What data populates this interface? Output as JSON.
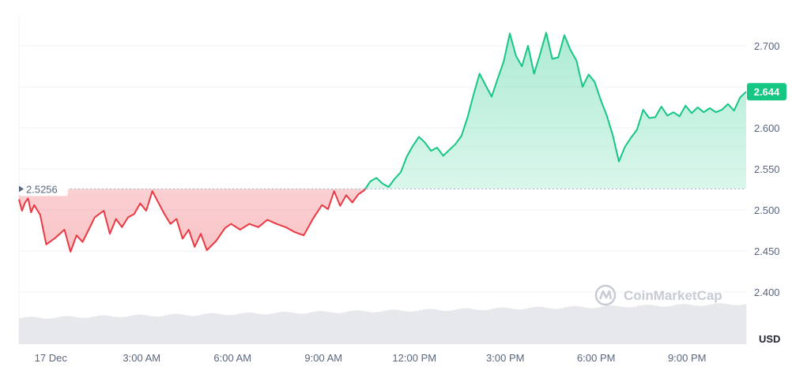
{
  "currency": "USD",
  "watermark": "CoinMarketCap",
  "colors": {
    "up": "#16c784",
    "down": "#ea3943",
    "grid": "#eff2f5",
    "axis_text": "#58667e",
    "volume": "#e6e8ec"
  },
  "chart_data": {
    "type": "area",
    "x_labels": [
      "17 Dec",
      "3:00 AM",
      "6:00 AM",
      "9:00 AM",
      "12:00 PM",
      "3:00 PM",
      "6:00 PM",
      "9:00 PM"
    ],
    "y_ticks": [
      "2.400",
      "2.450",
      "2.500",
      "2.550",
      "2.600",
      "2.650",
      "2.700"
    ],
    "ylim": [
      2.4,
      2.7
    ],
    "reference_price": 2.5256,
    "reference_label": "2.5256",
    "current_price_label": "2.644",
    "ylabel": "USD",
    "grid": true,
    "series": [
      {
        "x_hours": [
          0.0,
          0.1,
          0.2,
          0.3,
          0.4,
          0.5,
          0.7,
          0.9,
          1.2,
          1.5,
          1.7,
          1.9,
          2.1,
          2.3,
          2.5,
          2.8,
          3.0,
          3.2,
          3.4,
          3.6,
          3.8,
          4.0,
          4.2,
          4.4,
          4.6,
          4.8,
          5.0,
          5.2,
          5.4,
          5.6,
          5.8,
          6.0,
          6.2,
          6.5,
          6.8,
          7.0,
          7.3,
          7.6,
          7.9,
          8.2,
          8.5,
          8.8,
          9.1,
          9.4,
          9.7,
          10.0,
          10.2,
          10.4,
          10.6,
          10.8,
          11.0,
          11.2,
          11.4,
          11.6,
          11.8,
          12.0,
          12.2,
          12.4,
          12.6,
          12.8,
          13.0,
          13.2,
          13.4,
          13.6,
          13.8,
          14.0,
          14.2,
          14.4,
          14.6,
          14.8,
          15.0,
          15.2,
          15.4,
          15.6,
          15.8,
          16.0,
          16.2,
          16.4,
          16.6,
          16.8,
          17.0,
          17.2,
          17.4,
          17.6,
          17.8,
          18.0,
          18.2,
          18.4,
          18.6,
          18.8,
          19.0,
          19.2,
          19.4,
          19.6,
          19.8,
          20.0,
          20.2,
          20.4,
          20.6,
          20.8,
          21.0,
          21.2,
          21.4,
          21.6,
          21.8,
          22.0,
          22.2,
          22.4,
          22.6,
          22.8,
          23.0,
          23.2,
          23.4,
          23.6,
          23.8,
          24.0
        ],
        "values": [
          2.513,
          2.499,
          2.509,
          2.514,
          2.497,
          2.506,
          2.494,
          2.458,
          2.466,
          2.476,
          2.449,
          2.469,
          2.461,
          2.476,
          2.491,
          2.499,
          2.471,
          2.489,
          2.479,
          2.491,
          2.495,
          2.508,
          2.499,
          2.523,
          2.509,
          2.495,
          2.483,
          2.489,
          2.465,
          2.476,
          2.455,
          2.471,
          2.451,
          2.462,
          2.478,
          2.483,
          2.476,
          2.483,
          2.479,
          2.488,
          2.483,
          2.479,
          2.473,
          2.469,
          2.489,
          2.506,
          2.501,
          2.523,
          2.505,
          2.518,
          2.509,
          2.519,
          2.524,
          2.535,
          2.539,
          2.532,
          2.528,
          2.538,
          2.546,
          2.565,
          2.578,
          2.589,
          2.582,
          2.572,
          2.576,
          2.566,
          2.573,
          2.58,
          2.59,
          2.612,
          2.64,
          2.666,
          2.652,
          2.638,
          2.66,
          2.681,
          2.715,
          2.688,
          2.675,
          2.7,
          2.666,
          2.69,
          2.716,
          2.684,
          2.686,
          2.713,
          2.695,
          2.682,
          2.65,
          2.665,
          2.656,
          2.634,
          2.615,
          2.591,
          2.559,
          2.577,
          2.588,
          2.598,
          2.622,
          2.612,
          2.613,
          2.626,
          2.615,
          2.619,
          2.614,
          2.627,
          2.618,
          2.625,
          2.619,
          2.624,
          2.619,
          2.622,
          2.629,
          2.621,
          2.637,
          2.644
        ]
      }
    ]
  }
}
